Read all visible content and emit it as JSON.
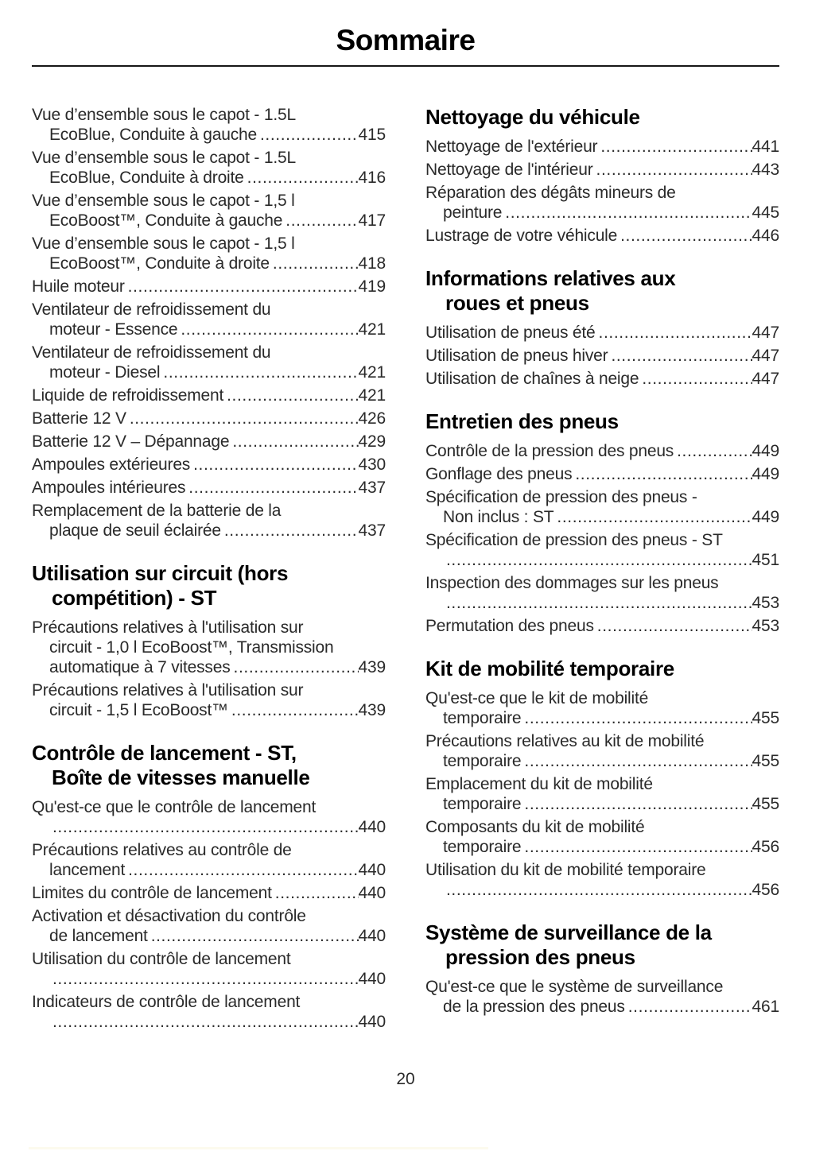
{
  "header": {
    "title": "Sommaire"
  },
  "footer": {
    "page_number": "20"
  },
  "toc": {
    "left_sections": [
      {
        "heading_lines": [],
        "entries": [
          {
            "lines": [
              "Vue d’ensemble sous le capot - 1.5L"
            ],
            "last": "EcoBlue, Conduite à gauche",
            "page": "415"
          },
          {
            "lines": [
              "Vue d’ensemble sous le capot - 1.5L"
            ],
            "last": "EcoBlue, Conduite à droite",
            "page": "416"
          },
          {
            "lines": [
              "Vue d’ensemble sous le capot - 1,5 l"
            ],
            "last": "EcoBoost™, Conduite à gauche",
            "page": "417"
          },
          {
            "lines": [
              "Vue d’ensemble sous le capot - 1,5 l"
            ],
            "last": "EcoBoost™, Conduite à droite",
            "page": "418"
          },
          {
            "lines": [],
            "last": "Huile moteur",
            "page": "419"
          },
          {
            "lines": [
              "Ventilateur de refroidissement du"
            ],
            "last": "moteur - Essence",
            "page": "421"
          },
          {
            "lines": [
              "Ventilateur de refroidissement du"
            ],
            "last": "moteur - Diesel",
            "page": "421"
          },
          {
            "lines": [],
            "last": "Liquide de refroidissement",
            "page": "421"
          },
          {
            "lines": [],
            "last": "Batterie 12 V",
            "page": "426"
          },
          {
            "lines": [],
            "last": "Batterie 12 V – Dépannage",
            "page": "429"
          },
          {
            "lines": [],
            "last": "Ampoules extérieures",
            "page": "430"
          },
          {
            "lines": [],
            "last": "Ampoules intérieures",
            "page": "437"
          },
          {
            "lines": [
              "Remplacement de la batterie de la"
            ],
            "last": "plaque de seuil éclairée",
            "page": "437"
          }
        ]
      },
      {
        "heading_lines": [
          "Utilisation sur circuit (hors",
          "compétition) - ST"
        ],
        "entries": [
          {
            "lines": [
              "Précautions relatives à l'utilisation sur",
              "circuit - 1,0 l EcoBoost™, Transmission"
            ],
            "last": "automatique à 7 vitesses",
            "page": "439"
          },
          {
            "lines": [
              "Précautions relatives à l'utilisation sur"
            ],
            "last": "circuit - 1,5 l EcoBoost™",
            "page": "439"
          }
        ]
      },
      {
        "heading_lines": [
          "Contrôle de lancement - ST,",
          "Boîte de vitesses manuelle"
        ],
        "entries": [
          {
            "lines": [
              "Qu'est-ce que le contrôle de lancement"
            ],
            "last": "",
            "page": "440"
          },
          {
            "lines": [
              "Précautions relatives au contrôle de"
            ],
            "last": "lancement",
            "page": "440"
          },
          {
            "lines": [],
            "last": "Limites du contrôle de lancement",
            "page": "440"
          },
          {
            "lines": [
              "Activation et désactivation du contrôle"
            ],
            "last": "de lancement",
            "page": "440"
          },
          {
            "lines": [
              "Utilisation du contrôle de lancement"
            ],
            "last": "",
            "page": "440"
          },
          {
            "lines": [
              "Indicateurs de contrôle de lancement"
            ],
            "last": "",
            "page": "440"
          }
        ]
      }
    ],
    "right_sections": [
      {
        "heading_lines": [
          "Nettoyage du véhicule"
        ],
        "entries": [
          {
            "lines": [],
            "last": "Nettoyage de l'extérieur",
            "page": "441"
          },
          {
            "lines": [],
            "last": "Nettoyage de l'intérieur",
            "page": "443"
          },
          {
            "lines": [
              "Réparation des dégâts mineurs de"
            ],
            "last": "peinture",
            "page": "445"
          },
          {
            "lines": [],
            "last": "Lustrage de votre véhicule",
            "page": "446"
          }
        ]
      },
      {
        "heading_lines": [
          "Informations relatives aux",
          "roues et pneus"
        ],
        "entries": [
          {
            "lines": [],
            "last": "Utilisation de pneus été",
            "page": "447"
          },
          {
            "lines": [],
            "last": "Utilisation de pneus hiver",
            "page": "447"
          },
          {
            "lines": [],
            "last": "Utilisation de chaînes à neige",
            "page": "447"
          }
        ]
      },
      {
        "heading_lines": [
          "Entretien des pneus"
        ],
        "entries": [
          {
            "lines": [],
            "last": "Contrôle de la pression des pneus",
            "page": "449"
          },
          {
            "lines": [],
            "last": "Gonflage des pneus",
            "page": "449"
          },
          {
            "lines": [
              "Spécification de pression des pneus -"
            ],
            "last": "Non inclus : ST",
            "page": "449"
          },
          {
            "lines": [
              "Spécification de pression des pneus - ST"
            ],
            "last": "",
            "page": "451"
          },
          {
            "lines": [
              "Inspection des dommages sur les pneus"
            ],
            "last": "",
            "page": "453"
          },
          {
            "lines": [],
            "last": "Permutation des pneus",
            "page": "453"
          }
        ]
      },
      {
        "heading_lines": [
          "Kit de mobilité temporaire"
        ],
        "entries": [
          {
            "lines": [
              "Qu'est-ce que le kit de mobilité"
            ],
            "last": "temporaire",
            "page": "455"
          },
          {
            "lines": [
              "Précautions relatives au kit de mobilité"
            ],
            "last": "temporaire",
            "page": "455"
          },
          {
            "lines": [
              "Emplacement du kit de mobilité"
            ],
            "last": "temporaire",
            "page": "455"
          },
          {
            "lines": [
              "Composants du kit de mobilité"
            ],
            "last": "temporaire",
            "page": "456"
          },
          {
            "lines": [
              "Utilisation du kit de mobilité temporaire"
            ],
            "last": "",
            "page": "456"
          }
        ]
      },
      {
        "heading_lines": [
          "Système de surveillance de la",
          "pression des pneus"
        ],
        "entries": [
          {
            "lines": [
              "Qu'est-ce que le système de surveillance"
            ],
            "last": "de la pression des pneus",
            "page": "461"
          }
        ]
      }
    ]
  }
}
